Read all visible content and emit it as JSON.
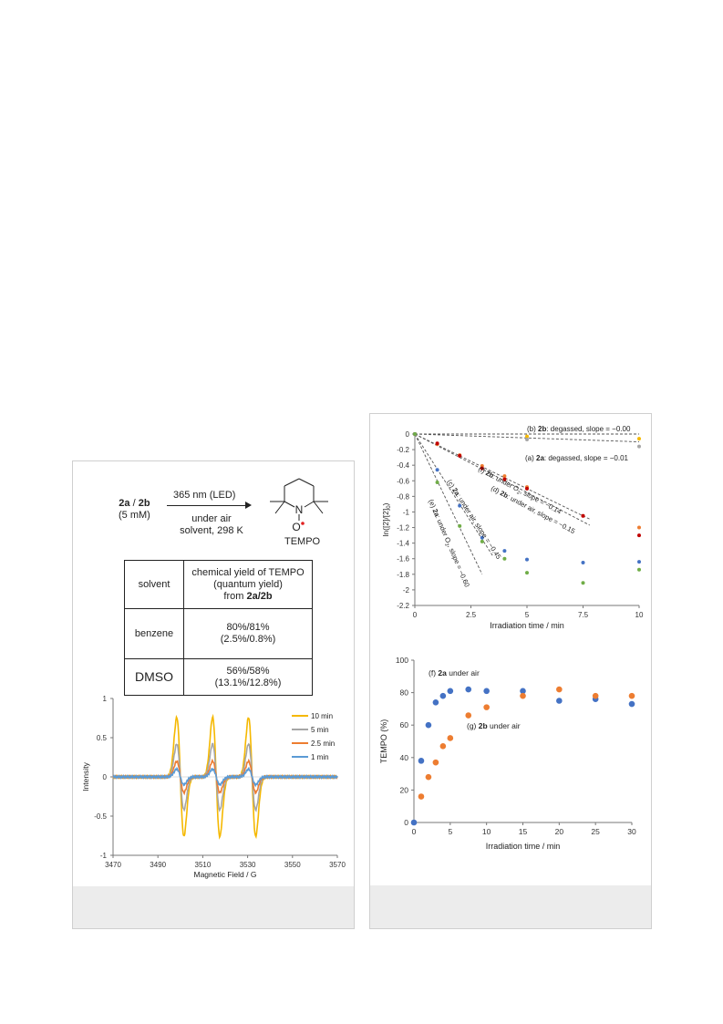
{
  "scheme": {
    "reactant_a": "2a",
    "reactant_sep": " / ",
    "reactant_b": "2b",
    "concentration": "(5 mM)",
    "above_arrow": "365 nm (LED)",
    "below_arrow_1": "under air",
    "below_arrow_2": "solvent, 298 K",
    "n_label": "N",
    "o_label": "O",
    "product": "TEMPO"
  },
  "table": {
    "header_solvent": "solvent",
    "header_yield_1": "chemical yield of TEMPO",
    "header_yield_2": "(quantum yield)",
    "header_yield_3": "from ",
    "header_yield_bold": "2a/2b",
    "rows": [
      {
        "solvent": "benzene",
        "yield": "80%/81%",
        "qy": "(2.5%/0.8%)"
      },
      {
        "solvent": "DMSO",
        "yield": "56%/58%",
        "qy": "(13.1%/12.8%)"
      }
    ]
  },
  "chart_data": [
    {
      "type": "line",
      "xlabel": "Magnetic Field / G",
      "ylabel": "Intensity",
      "xlim": [
        3470,
        3570
      ],
      "ylim": [
        -1,
        1
      ],
      "xticks": [
        "3470",
        "3490",
        "3510",
        "3530",
        "3550",
        "3570"
      ],
      "yticks": [
        "1",
        "0.5",
        "0",
        "-0.5",
        "-1"
      ],
      "legend_position": "top-right",
      "line_centers": [
        3500,
        3516,
        3532
      ],
      "series": [
        {
          "name": "10 min",
          "color": "#f5b800",
          "amplitude": 0.76
        },
        {
          "name": "5 min",
          "color": "#a6a6a6",
          "amplitude": 0.42
        },
        {
          "name": "2.5 min",
          "color": "#ed7d31",
          "amplitude": 0.2
        },
        {
          "name": "1 min",
          "color": "#5b9bd5",
          "amplitude": 0.1
        }
      ]
    },
    {
      "type": "scatter",
      "xlabel": "Irradiation time / min",
      "ylabel": "ln([2]/[2]",
      "ylabel_sub": "0",
      "ylabel_close": ")",
      "xlim": [
        0,
        10
      ],
      "ylim": [
        -2.2,
        0
      ],
      "xticks": [
        "0",
        "2.5",
        "5",
        "7.5",
        "10"
      ],
      "yticks": [
        "0",
        "-0.2",
        "-0.4",
        "-0.6",
        "-0.8",
        "-1",
        "-1.2",
        "-1.4",
        "-1.6",
        "-1.8",
        "-2",
        "-2.2"
      ],
      "series": [
        {
          "key": "b",
          "color": "#f5b800",
          "slope": -0.0,
          "fit_xmax": 10,
          "x": [
            0,
            5,
            10
          ],
          "y": [
            0,
            -0.03,
            -0.06
          ]
        },
        {
          "key": "a",
          "color": "#a6a6a6",
          "slope": -0.01,
          "fit_xmax": 10,
          "x": [
            0,
            5,
            10
          ],
          "y": [
            0,
            -0.07,
            -0.16
          ]
        },
        {
          "key": "f",
          "color": "#ed7d31",
          "slope": -0.14,
          "fit_xmax": 7.8,
          "x": [
            0,
            1,
            2,
            3,
            4,
            5,
            7.5,
            10
          ],
          "y": [
            0,
            -0.13,
            -0.27,
            -0.41,
            -0.54,
            -0.68,
            -1.05,
            -1.2
          ]
        },
        {
          "key": "d",
          "color": "#c00000",
          "slope": -0.15,
          "fit_xmax": 7.8,
          "x": [
            0,
            1,
            2,
            3,
            4,
            5,
            7.5,
            10
          ],
          "y": [
            0,
            -0.12,
            -0.28,
            -0.44,
            -0.58,
            -0.7,
            -1.05,
            -1.3
          ]
        },
        {
          "key": "c",
          "color": "#4472c4",
          "slope": -0.45,
          "fit_xmax": 3.5,
          "x": [
            0,
            1,
            2,
            3,
            4,
            5,
            7.5,
            10
          ],
          "y": [
            0,
            -0.46,
            -0.92,
            -1.33,
            -1.5,
            -1.61,
            -1.65,
            -1.64
          ]
        },
        {
          "key": "e",
          "color": "#70ad47",
          "slope": -0.6,
          "fit_xmax": 3.0,
          "x": [
            0,
            1,
            2,
            3,
            4,
            5,
            7.5,
            10
          ],
          "y": [
            0,
            -0.62,
            -1.18,
            -1.38,
            -1.6,
            -1.78,
            -1.91,
            -1.74
          ]
        }
      ],
      "annotations": [
        {
          "pre": "(b) ",
          "bold": "2b",
          "post": ": degassed, slope = −0.00"
        },
        {
          "pre": "(a) ",
          "bold": "2a",
          "post": ": degassed, slope = −0.01"
        },
        {
          "pre": "(f) ",
          "bold": "2b",
          "post": ": under O",
          "sub": "2",
          "post2": ", slope = −0.14"
        },
        {
          "pre": "(d) ",
          "bold": "2b",
          "post": ": under air, slope = −0.15"
        },
        {
          "pre": "(c) ",
          "bold": "2a",
          "post": ": under air, slope = −0.45"
        },
        {
          "pre": "(e) ",
          "bold": "2a",
          "post": ": under O",
          "sub": "2",
          "post2": ", slope = −0.60"
        }
      ]
    },
    {
      "type": "scatter",
      "xlabel": "Irradiation time / min",
      "ylabel": "TEMPO (%)",
      "xlim": [
        0,
        30
      ],
      "ylim": [
        0,
        100
      ],
      "xticks": [
        "0",
        "5",
        "10",
        "15",
        "20",
        "25",
        "30"
      ],
      "yticks": [
        "100",
        "80",
        "60",
        "40",
        "20",
        "0"
      ],
      "series": [
        {
          "label_pre": "(f) ",
          "label_bold": "2a",
          "label_post": " under air",
          "color": "#4472c4",
          "x": [
            0,
            1,
            2,
            3,
            4,
            5,
            7.5,
            10,
            15,
            20,
            25,
            30
          ],
          "y": [
            0,
            38,
            60,
            74,
            78,
            81,
            82,
            81,
            81,
            75,
            76,
            73
          ]
        },
        {
          "label_pre": "(g) ",
          "label_bold": "2b",
          "label_post": " under air",
          "color": "#ed7d31",
          "x": [
            1,
            2,
            3,
            4,
            5,
            7.5,
            10,
            15,
            20,
            25,
            30
          ],
          "y": [
            16,
            28,
            37,
            47,
            52,
            66,
            71,
            78,
            82,
            78,
            78
          ]
        }
      ]
    }
  ]
}
